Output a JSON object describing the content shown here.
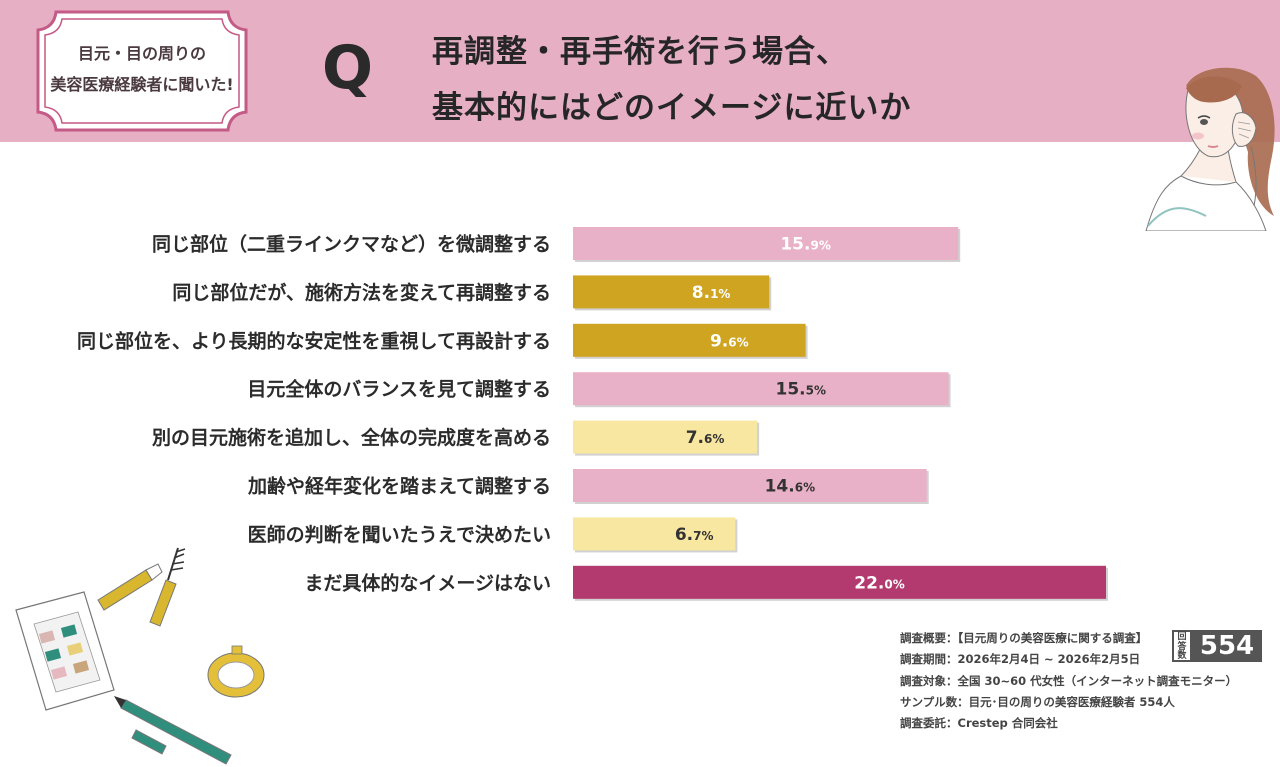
{
  "badge": {
    "line1": "目元・目の周りの",
    "line2": "美容医療経験者に聞いた!"
  },
  "question": {
    "mark": "Q",
    "line1": "再調整・再手術を行う場合、",
    "line2": "基本的にはどのイメージに近いか"
  },
  "colors": {
    "pink": "#e9b1c7",
    "gold": "#cfa420",
    "cream": "#f8e7a0",
    "magenta": "#b23a6e",
    "header": "#e7afc4"
  },
  "chart_data": {
    "type": "bar",
    "orientation": "horizontal",
    "title": "再調整・再手術を行う場合、基本的にはどのイメージに近いか",
    "unit": "%",
    "categories": [
      "同じ部位（二重ラインクマなど）を微調整する",
      "同じ部位だが、施術方法を変えて再調整する",
      "同じ部位を、より長期的な安定性を重視して再設計する",
      "目元全体のバランスを見て調整する",
      "別の目元施術を追加し、全体の完成度を高める",
      "加齢や経年変化を踏まえて調整する",
      "医師の判断を聞いたうえで決めたい",
      "まだ具体的なイメージはない"
    ],
    "values": [
      15.9,
      8.1,
      9.6,
      15.5,
      7.6,
      14.6,
      6.7,
      22.0
    ],
    "value_labels": [
      {
        "int": "15.",
        "dec": "9%"
      },
      {
        "int": "8.",
        "dec": "1%"
      },
      {
        "int": "9.",
        "dec": "6%"
      },
      {
        "int": "15.",
        "dec": "5%"
      },
      {
        "int": "7.",
        "dec": "6%"
      },
      {
        "int": "14.",
        "dec": "6%"
      },
      {
        "int": "6.",
        "dec": "7%"
      },
      {
        "int": "22.",
        "dec": "0%"
      }
    ],
    "bar_color_keys": [
      "pink",
      "gold",
      "gold",
      "pink",
      "cream",
      "pink",
      "cream",
      "magenta"
    ],
    "label_color_keys": [
      "white",
      "white",
      "white",
      "dark",
      "dark",
      "dark",
      "dark",
      "white"
    ],
    "xlim": [
      0,
      22
    ]
  },
  "survey": {
    "overview": "調査概要：【目元周りの美容医療に関する調査】",
    "period": "調査期間：2026年2月4日 ~ 2026年2月5日",
    "target": "調査対象：全国 30~60 代女性（インターネット調査モニター）",
    "sample": "サンプル数：目元･目の周りの美容医療経験者 554人",
    "commission": "調査委託：Crestep 合同会社"
  },
  "responses": {
    "label": "回答数",
    "count": "554"
  }
}
